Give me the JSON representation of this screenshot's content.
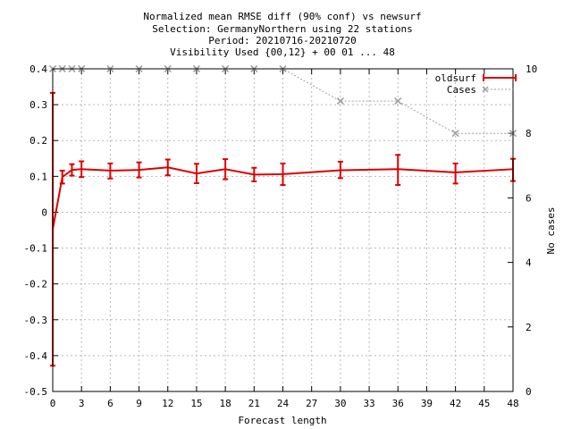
{
  "chart_data": {
    "type": "line",
    "title_lines": [
      "Normalized mean RMSE diff (90% conf) vs newsurf",
      "Selection: GermanyNorthern using    22 stations",
      "Period: 20210716-20210720",
      "Visibility   Used {00,12} + 00 01 ... 48"
    ],
    "xlabel": "Forecast length",
    "ylabel": "",
    "y2label": "No cases",
    "x_ticks": [
      0,
      3,
      6,
      9,
      12,
      15,
      18,
      21,
      24,
      27,
      30,
      33,
      36,
      39,
      42,
      45,
      48
    ],
    "y_ticks": [
      0.4,
      0.3,
      0.2,
      0.1,
      0,
      -0.1,
      -0.2,
      -0.3,
      -0.4,
      -0.5
    ],
    "y_tick_labels": [
      "0.4",
      "0.3",
      "0.2",
      "0.1",
      "0",
      "-0.1",
      "-0.2",
      "-0.3",
      "-0.4",
      "-0.5"
    ],
    "y2_ticks": [
      0,
      2,
      4,
      6,
      8,
      10
    ],
    "xlim": [
      0,
      48
    ],
    "ylim": [
      -0.5,
      0.4
    ],
    "y2lim": [
      0,
      10
    ],
    "grid": true,
    "legend_position": "top-right",
    "series": [
      {
        "name": "oldsurf",
        "color": "#dd0000",
        "x": [
          0,
          1,
          2,
          3,
          6,
          9,
          12,
          15,
          18,
          21,
          24,
          30,
          36,
          42,
          48
        ],
        "y": [
          -0.048,
          0.098,
          0.118,
          0.12,
          0.116,
          0.118,
          0.125,
          0.108,
          0.12,
          0.105,
          0.106,
          0.117,
          0.12,
          0.111,
          0.12
        ],
        "err_low": [
          -0.428,
          0.08,
          0.102,
          0.098,
          0.094,
          0.097,
          0.103,
          0.081,
          0.092,
          0.086,
          0.076,
          0.095,
          0.076,
          0.08,
          0.087
        ],
        "err_high": [
          0.333,
          0.116,
          0.134,
          0.142,
          0.136,
          0.139,
          0.147,
          0.135,
          0.148,
          0.124,
          0.136,
          0.141,
          0.16,
          0.136,
          0.149
        ]
      },
      {
        "name": "Cases",
        "color": "#a0a0a0",
        "axis": "right",
        "x": [
          0,
          1,
          2,
          3,
          6,
          9,
          12,
          15,
          18,
          21,
          24,
          30,
          36,
          42,
          48
        ],
        "y": [
          10,
          10,
          10,
          10,
          10,
          10,
          10,
          10,
          10,
          10,
          10,
          9,
          9,
          8,
          8
        ]
      }
    ]
  }
}
